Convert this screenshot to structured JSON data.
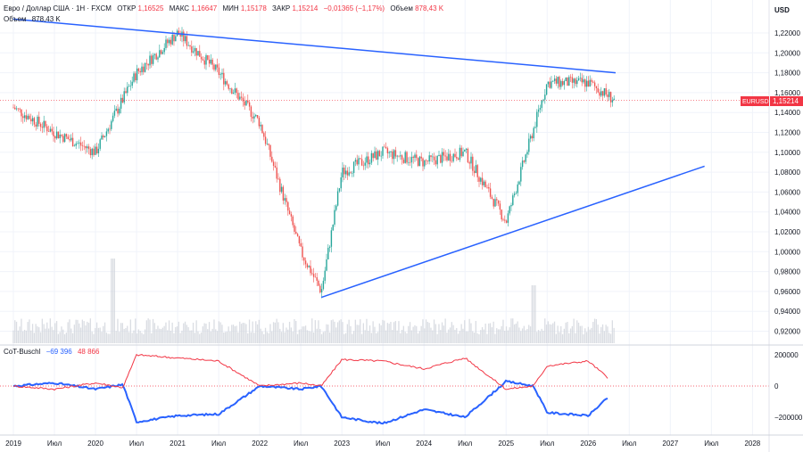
{
  "header": {
    "symbol": "Евро / Доллар США · 1Н · FXCM",
    "open_label": "ОТКР",
    "open": "1,16525",
    "high_label": "МАКС",
    "high": "1,16647",
    "low_label": "МИН",
    "low": "1,15178",
    "close_label": "ЗАКР",
    "close": "1,15214",
    "change": "−0,01365 (−1,17%)",
    "volume_label": "Объем",
    "volume": "878,43 K"
  },
  "volume_legend": {
    "label": "Объем",
    "value": "878,43 K"
  },
  "currency_label": "USD",
  "price_tag": {
    "symbol": "EURUSD",
    "value": "1,15214"
  },
  "price_axis": {
    "ticks": [
      "1,22000",
      "1,20000",
      "1,18000",
      "1,16000",
      "1,14000",
      "1,12000",
      "1,10000",
      "1,08000",
      "1,06000",
      "1,04000",
      "1,02000",
      "1,00000",
      "0,98000",
      "0,96000",
      "0,94000",
      "0,92000"
    ]
  },
  "cot_panel": {
    "title": "CoT-Buschl",
    "value1": "−69 396",
    "value2": "48 866",
    "ticks": [
      "200000",
      "0",
      "−200000"
    ]
  },
  "time_axis": {
    "labels": [
      "2019",
      "Июл",
      "2020",
      "Июл",
      "2021",
      "Июл",
      "2022",
      "Июл",
      "2023",
      "Июл",
      "2024",
      "Июл",
      "2025",
      "Июл",
      "2026",
      "Июл",
      "2027",
      "Июл",
      "2028"
    ]
  },
  "colors": {
    "up": "#26a69a",
    "down": "#ef5350",
    "trendline": "#2962ff",
    "cot_line1": "#2962ff",
    "cot_line2": "#f23645",
    "price_tag_bg": "#f23645"
  },
  "chart_data": [
    {
      "type": "candlestick",
      "symbol": "EURUSD",
      "timeframe": "1W",
      "x": [
        "2019-01",
        "2019-07",
        "2020-01",
        "2020-07",
        "2021-01",
        "2021-07",
        "2022-01",
        "2022-07",
        "2022-10",
        "2023-01",
        "2023-07",
        "2024-01",
        "2024-07",
        "2025-01",
        "2025-07",
        "2026-01",
        "2026-05"
      ],
      "close": [
        1.145,
        1.12,
        1.1,
        1.18,
        1.22,
        1.18,
        1.13,
        1.0,
        0.96,
        1.08,
        1.1,
        1.09,
        1.1,
        1.03,
        1.17,
        1.17,
        1.152
      ],
      "ylim": [
        0.91,
        1.235
      ],
      "trendlines": [
        {
          "from": [
            "2019-01",
            1.234
          ],
          "to": [
            "2026-05",
            1.18
          ]
        },
        {
          "from": [
            "2022-10",
            0.954
          ],
          "to": [
            "2027-06",
            1.086
          ]
        }
      ],
      "last_price": 1.15214
    },
    {
      "type": "line",
      "name": "CoT-Buschl",
      "x": [
        "2019-01",
        "2019-07",
        "2020-01",
        "2020-05",
        "2020-07",
        "2021-01",
        "2021-07",
        "2022-01",
        "2022-07",
        "2022-10",
        "2023-01",
        "2023-07",
        "2024-01",
        "2024-07",
        "2025-01",
        "2025-05",
        "2025-07",
        "2026-01",
        "2026-04"
      ],
      "series": [
        {
          "values": [
            0,
            20000,
            -20000,
            10000,
            -230000,
            -190000,
            -180000,
            0,
            -20000,
            0,
            -200000,
            -240000,
            -150000,
            -200000,
            30000,
            0,
            -170000,
            -190000,
            -69396
          ]
        },
        {
          "values": [
            0,
            -20000,
            20000,
            -10000,
            200000,
            180000,
            160000,
            0,
            20000,
            0,
            170000,
            160000,
            110000,
            180000,
            -20000,
            0,
            130000,
            160000,
            48866
          ]
        }
      ],
      "ylim": [
        -250000,
        250000
      ]
    }
  ]
}
